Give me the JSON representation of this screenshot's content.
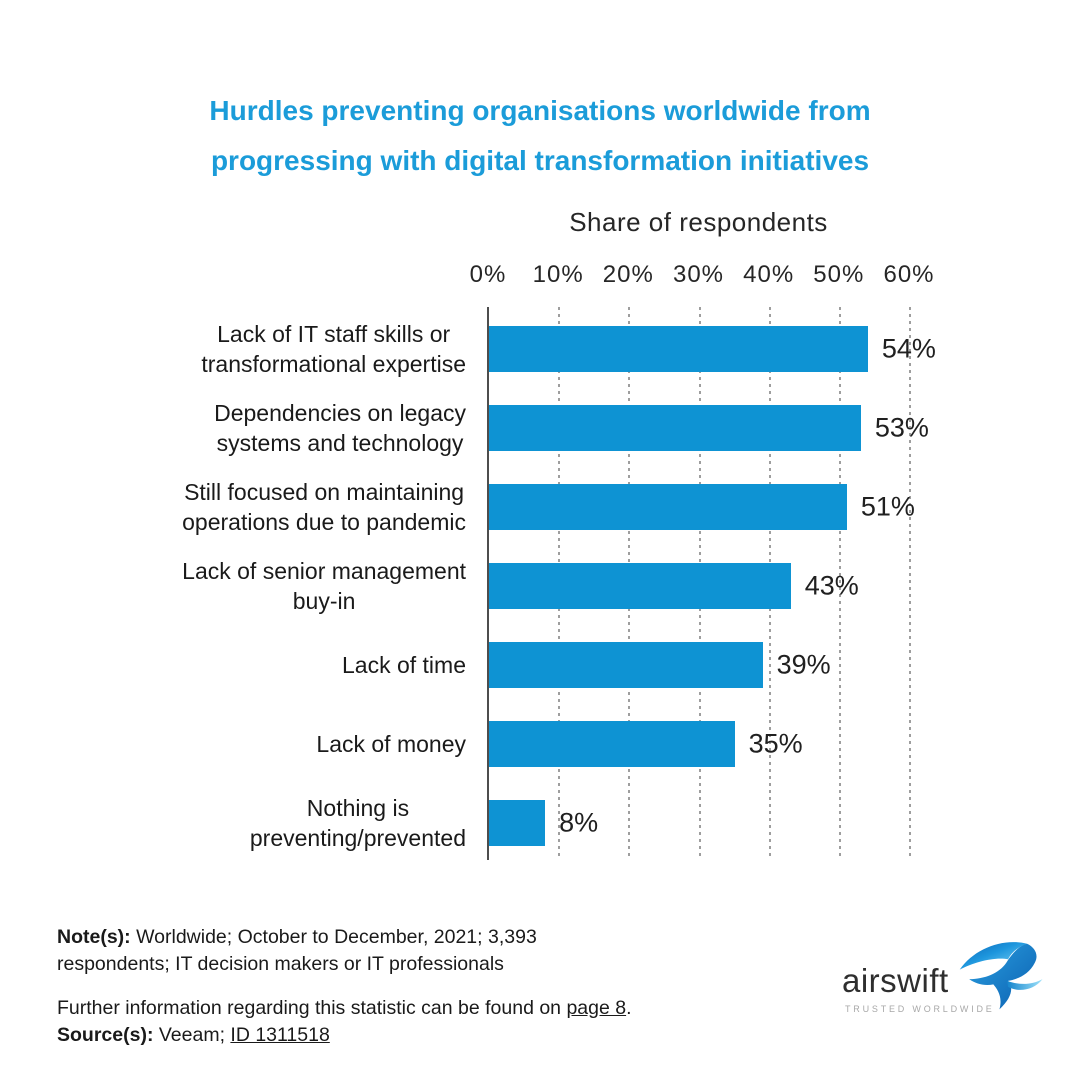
{
  "title": {
    "text": "Hurdles preventing organisations worldwide from progressing with digital transformation initiatives",
    "line1": "Hurdles preventing organisations worldwide from",
    "line2": "progressing with digital transformation initiatives",
    "color": "#1b9cd9"
  },
  "chart_data": {
    "type": "bar",
    "orientation": "horizontal",
    "axis_title": "Share of respondents",
    "x_ticks": [
      "0%",
      "10%",
      "20%",
      "30%",
      "40%",
      "50%",
      "60%"
    ],
    "x_range": [
      0,
      60
    ],
    "grid": "vertical-dashed",
    "bar_color": "#0e93d3",
    "categories": [
      "Lack of IT staff skills or transformational expertise",
      "Dependencies on legacy systems and technology",
      "Still focused on maintaining operations due to pandemic",
      "Lack of senior management buy-in",
      "Lack of time",
      "Lack of money",
      "Nothing is preventing/prevented"
    ],
    "category_lines": [
      [
        "Lack of IT staff skills or",
        "transformational expertise"
      ],
      [
        "Dependencies on legacy",
        "systems and technology"
      ],
      [
        "Still focused on maintaining",
        "operations due to pandemic"
      ],
      [
        "Lack of senior management",
        "buy-in"
      ],
      [
        "Lack of time"
      ],
      [
        "Lack of money"
      ],
      [
        "Nothing is",
        "preventing/prevented"
      ]
    ],
    "values": [
      54,
      53,
      51,
      43,
      39,
      35,
      8
    ],
    "value_labels": [
      "54%",
      "53%",
      "51%",
      "43%",
      "39%",
      "35%",
      "8%"
    ]
  },
  "footer": {
    "notes_label": "Note(s):",
    "notes_line1": "Worldwide; October to December, 2021; 3,393",
    "notes_line2": "respondents; IT decision makers or IT professionals",
    "further_prefix": "Further information regarding this statistic can be found on ",
    "further_link": "page 8",
    "further_suffix": ".",
    "source_label": "Source(s):",
    "source_text": "Veeam; ",
    "source_link": "ID 1311518"
  },
  "logo": {
    "name": "airswift",
    "tagline": "TRUSTED WORLDWIDE"
  },
  "colors": {
    "title_blue": "#1b9cd9",
    "bar_blue": "#0e93d3",
    "axis_line": "#4d4d4d",
    "gridline": "#9e9e9e",
    "text_dark": "#1a1a1a"
  }
}
